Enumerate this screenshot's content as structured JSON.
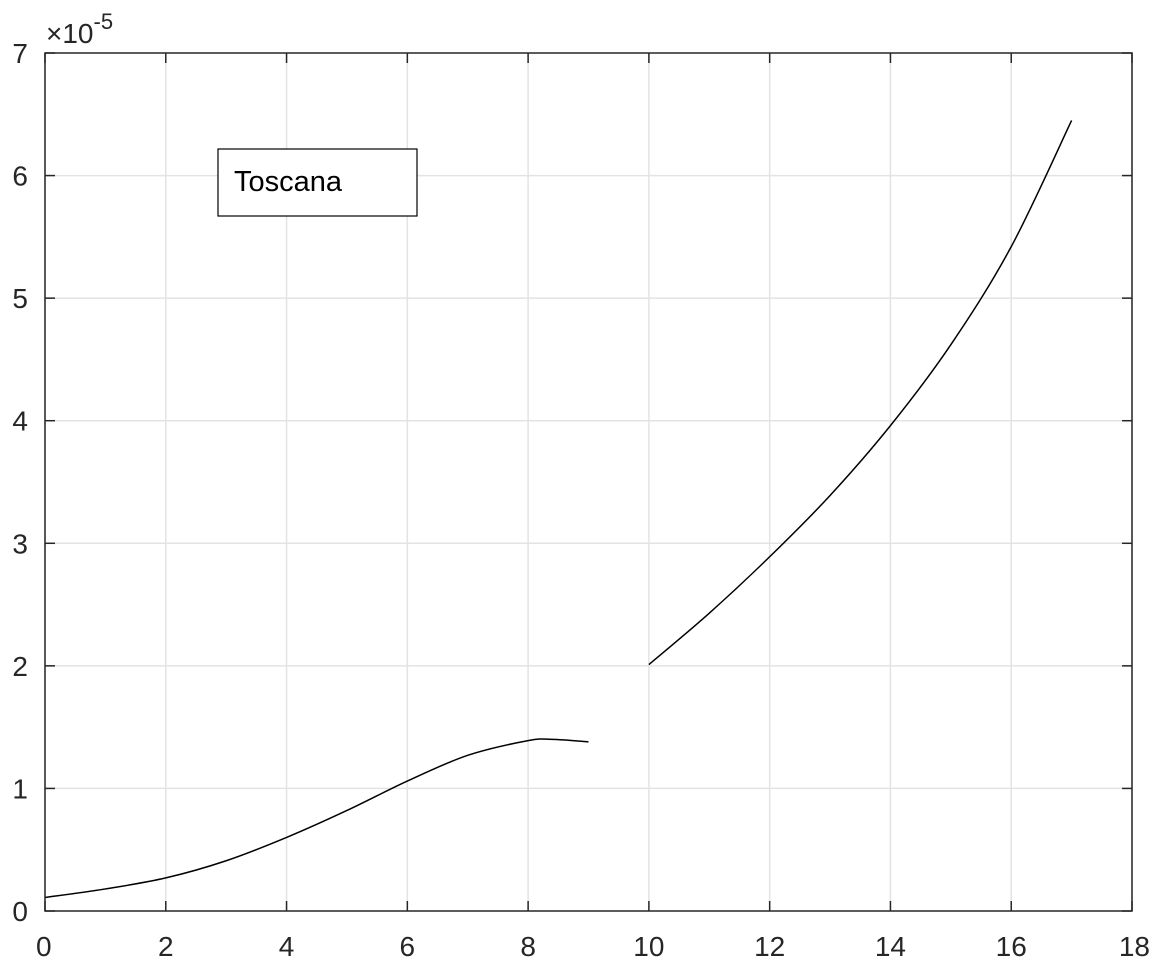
{
  "chart_data": {
    "type": "line",
    "title": "",
    "xlabel": "",
    "ylabel": "",
    "xlim": [
      0,
      18
    ],
    "ylim": [
      0,
      7
    ],
    "x_ticks": [
      0,
      2,
      4,
      6,
      8,
      10,
      12,
      14,
      16,
      18
    ],
    "y_ticks": [
      0,
      1,
      2,
      3,
      4,
      5,
      6,
      7
    ],
    "y_exponent_multiplier": "×10",
    "y_exponent_power": "-5",
    "grid": true,
    "annotation": "Toscana",
    "colors": {
      "line": "#000000",
      "grid": "#e3e3e3",
      "axis": "#262626"
    },
    "series": [
      {
        "x": [
          0,
          1,
          2,
          3,
          4,
          5,
          6,
          7,
          8,
          8.4,
          9
        ],
        "y": [
          0.11,
          0.18,
          0.27,
          0.41,
          0.6,
          0.82,
          1.06,
          1.27,
          1.39,
          1.4,
          1.38
        ]
      },
      {
        "x": [
          10,
          11,
          12,
          13,
          14,
          15,
          16,
          17
        ],
        "y": [
          2.01,
          2.43,
          2.89,
          3.39,
          3.96,
          4.62,
          5.42,
          6.45
        ]
      }
    ]
  }
}
